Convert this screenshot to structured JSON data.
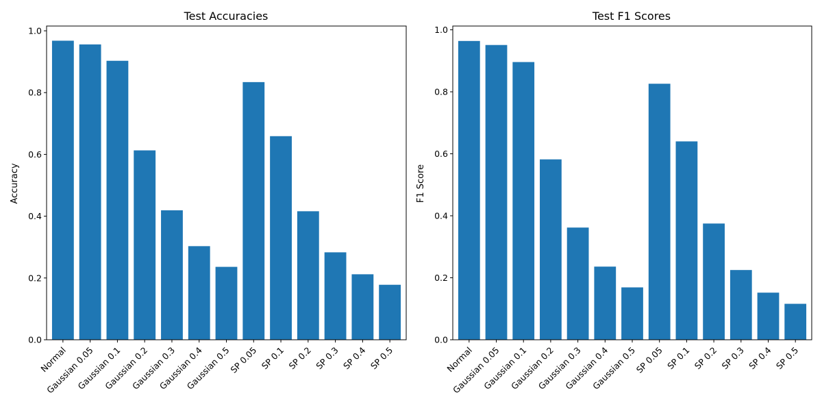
{
  "chart_data": [
    {
      "type": "bar",
      "title": "Test Accuracies",
      "xlabel": "",
      "ylabel": "Accuracy",
      "categories": [
        "Normal",
        "Gaussian 0.05",
        "Gaussian 0.1",
        "Gaussian 0.2",
        "Gaussian 0.3",
        "Gaussian 0.4",
        "Gaussian 0.5",
        "SP 0.05",
        "SP 0.1",
        "SP 0.2",
        "SP 0.3",
        "SP 0.4",
        "SP 0.5"
      ],
      "values": [
        0.968,
        0.956,
        0.903,
        0.613,
        0.419,
        0.303,
        0.236,
        0.834,
        0.659,
        0.416,
        0.283,
        0.212,
        0.178
      ],
      "ylim": [
        0,
        1.0155
      ],
      "yticks": [
        0.0,
        0.2,
        0.4,
        0.6,
        0.8,
        1.0
      ],
      "ytick_labels": [
        "0.0",
        "0.2",
        "0.4",
        "0.6",
        "0.8",
        "1.0"
      ],
      "grid": false,
      "color": "#1f77b4"
    },
    {
      "type": "bar",
      "title": "Test F1 Scores",
      "xlabel": "",
      "ylabel": "F1 Score",
      "categories": [
        "Normal",
        "Gaussian 0.05",
        "Gaussian 0.1",
        "Gaussian 0.2",
        "Gaussian 0.3",
        "Gaussian 0.4",
        "Gaussian 0.5",
        "SP 0.05",
        "SP 0.1",
        "SP 0.2",
        "SP 0.3",
        "SP 0.4",
        "SP 0.5"
      ],
      "values": [
        0.964,
        0.951,
        0.896,
        0.582,
        0.362,
        0.236,
        0.169,
        0.826,
        0.64,
        0.375,
        0.225,
        0.152,
        0.116
      ],
      "ylim": [
        0,
        1.0122
      ],
      "yticks": [
        0.0,
        0.2,
        0.4,
        0.6,
        0.8,
        1.0
      ],
      "ytick_labels": [
        "0.0",
        "0.2",
        "0.4",
        "0.6",
        "0.8",
        "1.0"
      ],
      "grid": false,
      "color": "#1f77b4"
    }
  ]
}
